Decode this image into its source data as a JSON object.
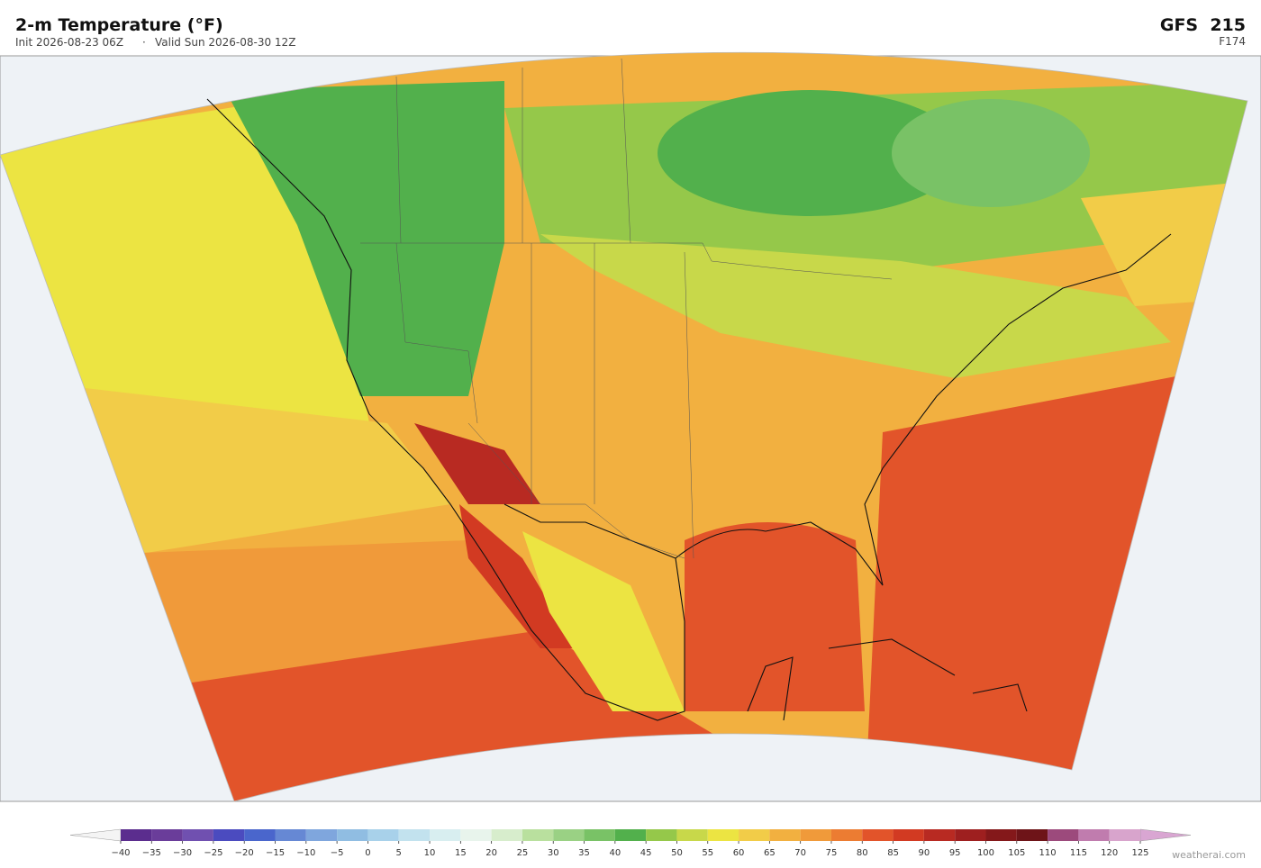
{
  "header": {
    "title": "2-m Temperature  (°F)",
    "init": "Init 2026-08-23 06Z",
    "separator": "·",
    "valid": "Valid Sun 2026-08-30 12Z",
    "model": "GFS  215",
    "forecast_hour": "F174"
  },
  "colorbar": {
    "ticks": [
      {
        "value": -40,
        "label": "−40"
      },
      {
        "value": -35,
        "label": "−35"
      },
      {
        "value": -30,
        "label": "−30"
      },
      {
        "value": -25,
        "label": "−25"
      },
      {
        "value": -20,
        "label": "−20"
      },
      {
        "value": -15,
        "label": "−15"
      },
      {
        "value": -10,
        "label": "−10"
      },
      {
        "value": -5,
        "label": "−5"
      },
      0,
      5,
      10,
      15,
      20,
      25,
      30,
      35,
      40,
      45,
      50,
      55,
      60,
      65,
      70,
      75,
      80,
      85,
      90,
      95,
      100,
      105,
      110,
      115,
      120,
      125
    ],
    "colors": [
      "#5b2d8e",
      "#6a3d9a",
      "#7050b0",
      "#4b4bbf",
      "#4a66cc",
      "#6688d4",
      "#7fa6dd",
      "#90bde2",
      "#a8d1ea",
      "#c2e2ee",
      "#d8eef0",
      "#e8f4ec",
      "#d7edcc",
      "#b9e09e",
      "#9ad184",
      "#79c266",
      "#52b04c",
      "#95c84a",
      "#c8d84a",
      "#ece442",
      "#f2cc48",
      "#f2b040",
      "#f09a3a",
      "#ec7c32",
      "#e2542a",
      "#d23a22",
      "#b82a22",
      "#9e1f1f",
      "#84181a",
      "#6e1418",
      "#9c4a7c",
      "#c07cae",
      "#d8a4cc"
    ],
    "under_color": "#f4f4f4",
    "over_color": "#d9a6d2"
  },
  "footer": {
    "credit": "weatherai.com"
  }
}
